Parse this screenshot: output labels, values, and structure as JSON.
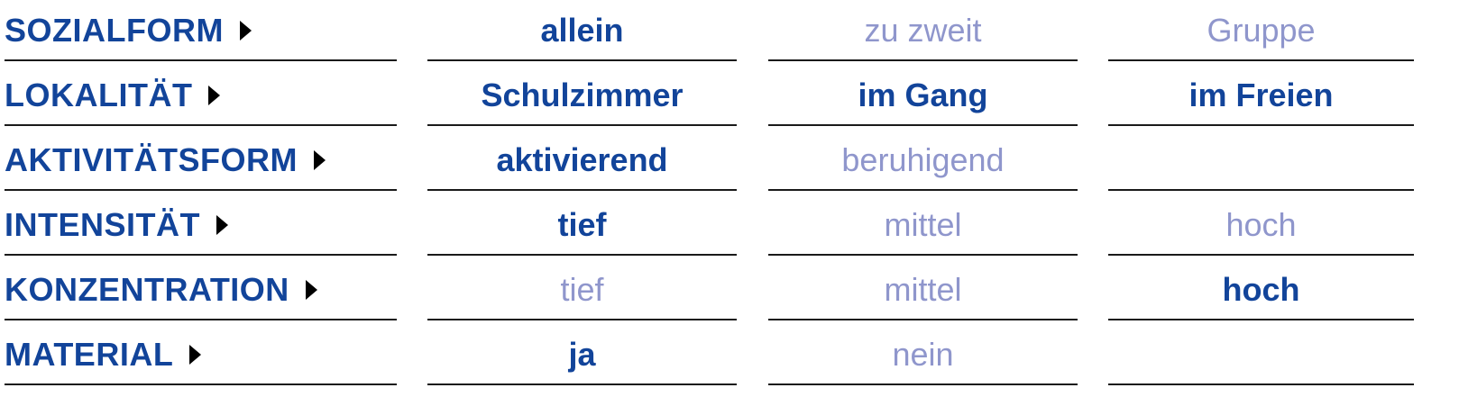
{
  "colors": {
    "active": "#12449a",
    "inactive": "#8f96cc"
  },
  "rows": [
    {
      "label": "SOZIALFORM",
      "options": [
        {
          "text": "allein",
          "selected": true
        },
        {
          "text": "zu zweit",
          "selected": false
        },
        {
          "text": "Gruppe",
          "selected": false
        }
      ]
    },
    {
      "label": "LOKALITÄT",
      "options": [
        {
          "text": "Schulzimmer",
          "selected": true
        },
        {
          "text": "im Gang",
          "selected": true
        },
        {
          "text": "im Freien",
          "selected": true
        }
      ]
    },
    {
      "label": "AKTIVITÄTSFORM",
      "options": [
        {
          "text": "aktivierend",
          "selected": true
        },
        {
          "text": "beruhigend",
          "selected": false
        },
        {
          "text": "",
          "selected": false
        }
      ]
    },
    {
      "label": "INTENSITÄT",
      "options": [
        {
          "text": "tief",
          "selected": true
        },
        {
          "text": "mittel",
          "selected": false
        },
        {
          "text": "hoch",
          "selected": false
        }
      ]
    },
    {
      "label": "KONZENTRATION",
      "options": [
        {
          "text": "tief",
          "selected": false
        },
        {
          "text": "mittel",
          "selected": false
        },
        {
          "text": "hoch",
          "selected": true
        }
      ]
    },
    {
      "label": "MATERIAL",
      "options": [
        {
          "text": "ja",
          "selected": true
        },
        {
          "text": "nein",
          "selected": false
        },
        {
          "text": "",
          "selected": false
        }
      ]
    }
  ]
}
